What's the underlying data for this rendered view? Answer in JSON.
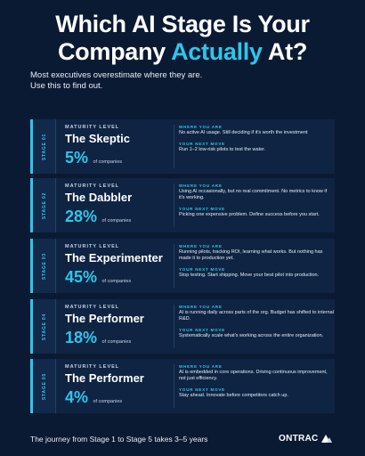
{
  "header": {
    "title_line1": "Which AI Stage Is Your",
    "title_line2_pre": "Company ",
    "title_line2_accent": "Actually",
    "title_line2_post": " At?",
    "subtitle_line1": "Most executives overestimate where they are.",
    "subtitle_line2": "Use this to find out."
  },
  "common": {
    "maturity_label": "MATURITY LEVEL",
    "where_label": "WHERE YOU ARE",
    "next_label": "YOUR NEXT MOVE",
    "pct_suffix": "of companies"
  },
  "stages": [
    {
      "stage": "STAGE 01",
      "name": "The Skeptic",
      "pct": "5%",
      "where": "No active AI usage. Still deciding if it's worth the investment",
      "next": "Run 1–2 low-risk pilots to test the water."
    },
    {
      "stage": "STAGE 02",
      "name": "The Dabbler",
      "pct": "28%",
      "where": "Using AI occasionally, but no real commitment. No metrics to know if it's working.",
      "next": "Picking one expensive problem. Define success before you start."
    },
    {
      "stage": "STAGE 03",
      "name": "The Experimenter",
      "pct": "45%",
      "where": "Running pilots, tracking ROI, learning what works. But nothing has made it to production yet.",
      "next": "Stop testing. Start shipping. Move your best pilot into production."
    },
    {
      "stage": "STAGE 04",
      "name": "The Performer",
      "pct": "18%",
      "where": "AI is running daily across parts of the org. Budget has shifted to internal R&D.",
      "next": "Systematically scale what's working across the entire organization."
    },
    {
      "stage": "STAGE 05",
      "name": "The Performer",
      "pct": "4%",
      "where": "AI is embedded in core operations. Driving continuous improvement, not just efficiency.",
      "next": "Stay ahead. Innovate before competitors catch up."
    }
  ],
  "footer": {
    "text": "The journey from Stage 1 to Stage 5 takes 3–5 years",
    "logo": "ONTRAC"
  },
  "colors": {
    "background": "#0b1a33",
    "accent": "#2ec6ea",
    "card": "#0f2443"
  }
}
